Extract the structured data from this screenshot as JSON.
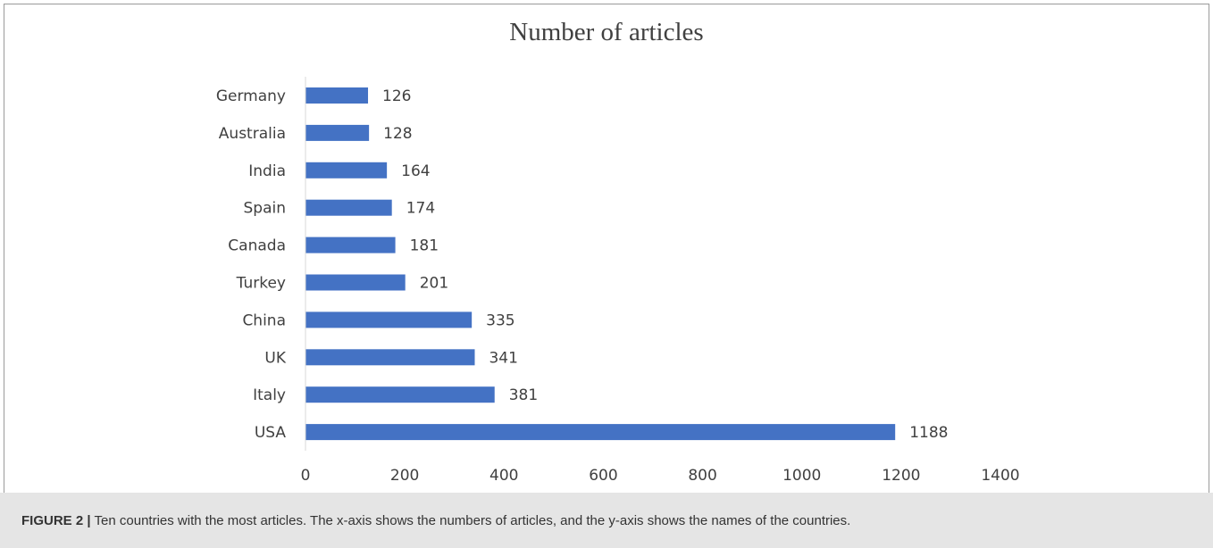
{
  "figure": {
    "label": "FIGURE 2 |",
    "caption": "Ten countries with the most articles. The x-axis shows the numbers of articles, and the y-axis shows the names of the countries."
  },
  "colors": {
    "bar": "#4472C4",
    "axis_text": "#404040",
    "axis_line": "#d9d9d9",
    "caption_bg": "#e5e5e5"
  },
  "chart_data": {
    "type": "bar",
    "orientation": "horizontal",
    "title": "Number of articles",
    "xlabel": "",
    "ylabel": "",
    "categories": [
      "Germany",
      "Australia",
      "India",
      "Spain",
      "Canada",
      "Turkey",
      "China",
      "UK",
      "Italy",
      "USA"
    ],
    "values": [
      126,
      128,
      164,
      174,
      181,
      201,
      335,
      341,
      381,
      1188
    ],
    "xlim": [
      0,
      1400
    ],
    "xticks": [
      0,
      200,
      400,
      600,
      800,
      1000,
      1200,
      1400
    ],
    "grid": false,
    "legend": "none",
    "data_labels": true
  }
}
